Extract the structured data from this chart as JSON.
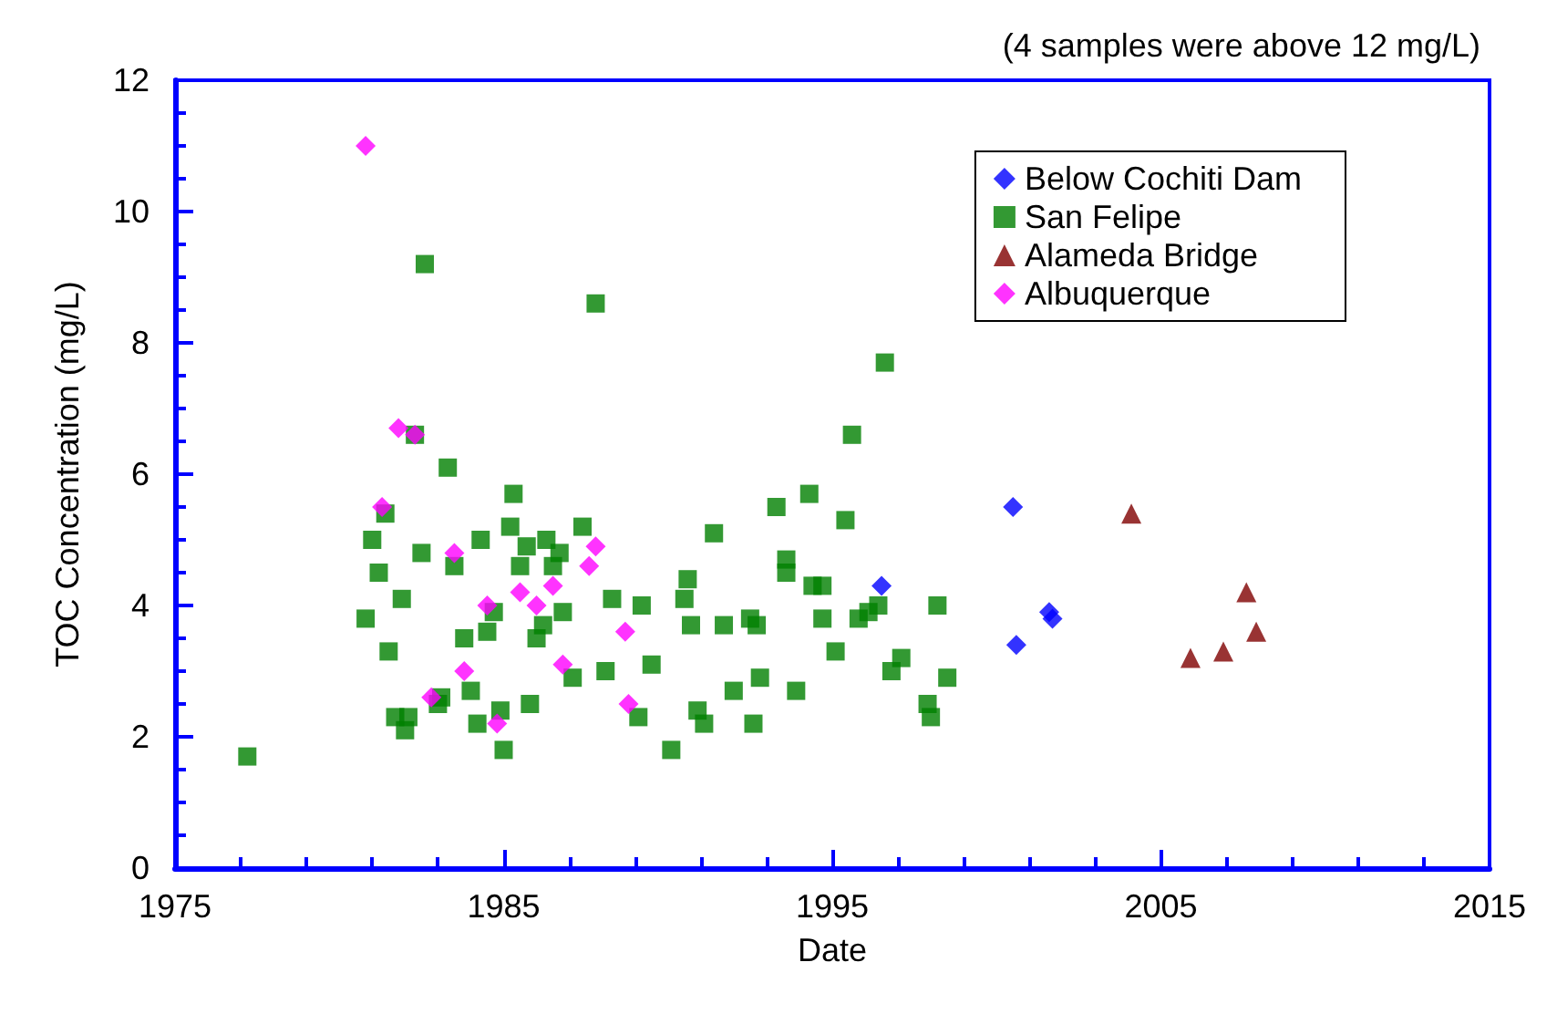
{
  "chart_data": {
    "type": "scatter",
    "xlabel": "Date",
    "ylabel": "TOC Concentration (mg/L)",
    "annotations": [
      "(4 samples were above 12 mg/L)"
    ],
    "xlim": [
      1975,
      2015
    ],
    "xticks": [
      1975,
      1985,
      1995,
      2005,
      2015
    ],
    "ylim": [
      0,
      12
    ],
    "yticks": [
      0,
      2,
      4,
      6,
      8,
      10,
      12
    ],
    "grid": false,
    "legend": "top right",
    "series": [
      {
        "name": "Below Cochiti Dam",
        "color": "#0000ff",
        "marker": "diamond",
        "x": [
          1996.5,
          2000.5,
          2000.6,
          2001.6,
          2001.7
        ],
        "values": [
          4.3,
          5.5,
          3.4,
          3.9,
          3.8
        ]
      },
      {
        "name": "San Felipe",
        "color": "#008000",
        "marker": "square",
        "x": [
          1977.2,
          1980.8,
          1981.0,
          1981.2,
          1981.4,
          1981.5,
          1981.7,
          1981.9,
          1982.0,
          1982.1,
          1982.3,
          1982.5,
          1982.6,
          1983.0,
          1983.1,
          1983.3,
          1983.5,
          1983.8,
          1984.0,
          1984.2,
          1984.3,
          1984.5,
          1984.7,
          1984.9,
          1985.0,
          1985.2,
          1985.3,
          1985.5,
          1985.7,
          1985.8,
          1986.0,
          1986.2,
          1986.3,
          1986.5,
          1986.7,
          1986.8,
          1987.1,
          1987.4,
          1987.8,
          1988.1,
          1988.3,
          1989.1,
          1989.2,
          1989.5,
          1990.1,
          1990.5,
          1990.6,
          1990.7,
          1990.9,
          1991.1,
          1991.4,
          1991.7,
          1992.0,
          1992.5,
          1992.6,
          1992.7,
          1992.8,
          1993.3,
          1993.6,
          1993.6,
          1993.9,
          1994.3,
          1994.4,
          1994.7,
          1994.7,
          1995.1,
          1995.4,
          1995.6,
          1995.8,
          1996.1,
          1996.4,
          1996.6,
          1996.8,
          1997.1,
          1997.9,
          1998.0,
          1998.2,
          1998.5
        ],
        "values": [
          1.7,
          3.8,
          5.0,
          4.5,
          5.4,
          3.3,
          2.3,
          4.1,
          2.1,
          2.3,
          6.6,
          4.8,
          9.2,
          2.5,
          2.6,
          6.1,
          4.6,
          3.5,
          2.7,
          2.2,
          5.0,
          3.6,
          3.9,
          2.4,
          1.8,
          5.2,
          5.7,
          4.6,
          4.9,
          2.5,
          3.5,
          3.7,
          5.0,
          4.6,
          4.8,
          3.9,
          2.9,
          5.2,
          8.6,
          3.0,
          4.1,
          2.3,
          4.0,
          3.1,
          1.8,
          4.1,
          4.4,
          3.7,
          2.4,
          2.2,
          5.1,
          3.7,
          2.7,
          3.8,
          2.2,
          3.7,
          2.9,
          5.5,
          4.7,
          4.5,
          2.7,
          5.7,
          4.3,
          4.3,
          3.8,
          3.3,
          5.3,
          6.6,
          3.8,
          3.9,
          4.0,
          7.7,
          3.0,
          3.2,
          2.5,
          2.3,
          4.0,
          2.9
        ]
      },
      {
        "name": "Alameda Bridge",
        "color": "#800000",
        "marker": "triangle",
        "x": [
          2004.1,
          2005.9,
          2006.9,
          2007.6,
          2007.9
        ],
        "values": [
          5.4,
          3.2,
          3.3,
          4.2,
          3.6
        ]
      },
      {
        "name": "Albuquerque",
        "color": "#ff00ff",
        "marker": "diamond",
        "x": [
          1980.8,
          1981.3,
          1981.8,
          1982.3,
          1982.8,
          1983.5,
          1983.8,
          1984.5,
          1984.8,
          1985.5,
          1986.0,
          1986.5,
          1986.8,
          1987.6,
          1987.8,
          1988.7,
          1988.8
        ],
        "values": [
          11.0,
          5.5,
          6.7,
          6.6,
          2.6,
          4.8,
          3.0,
          4.0,
          2.2,
          4.2,
          4.0,
          4.3,
          3.1,
          4.6,
          4.9,
          3.6,
          2.5
        ]
      }
    ]
  }
}
